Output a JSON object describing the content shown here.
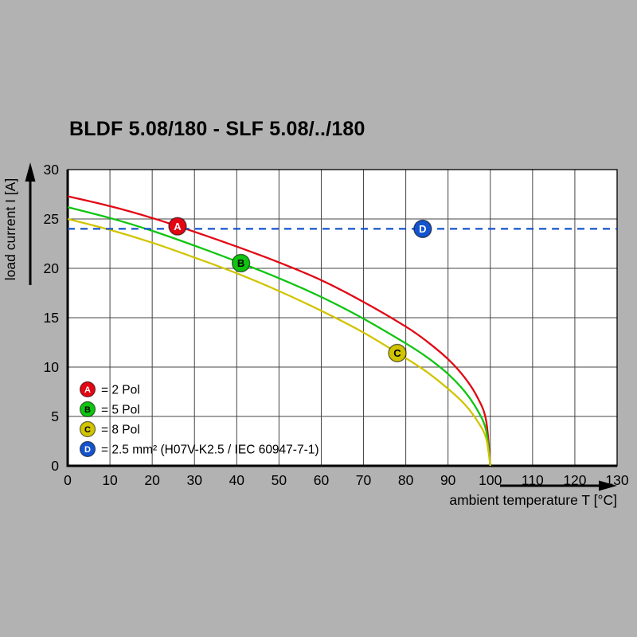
{
  "page": {
    "background": "#b2b2b2"
  },
  "chart_data": {
    "type": "line",
    "title": "BLDF 5.08/180 - SLF 5.08/../180",
    "xlabel": "ambient temperature T [°C]",
    "ylabel": "load current I [A]",
    "xlim": [
      0,
      130
    ],
    "ylim": [
      0,
      30
    ],
    "xticks": [
      0,
      10,
      20,
      30,
      40,
      50,
      60,
      70,
      80,
      90,
      100,
      110,
      120,
      130
    ],
    "yticks": [
      0,
      5,
      10,
      15,
      20,
      25,
      30
    ],
    "grid": true,
    "grid_color": "#444444",
    "plot_background": "#ffffff",
    "legend_position": "bottom-left",
    "series": [
      {
        "id": "A",
        "legend": "= 2 Pol",
        "color": "#e30613",
        "letter_color": "#ffffff",
        "line_style": "solid",
        "marker_x": 26,
        "points": [
          [
            0,
            27.3
          ],
          [
            10,
            26.3
          ],
          [
            20,
            25.1
          ],
          [
            30,
            23.7
          ],
          [
            40,
            22.2
          ],
          [
            50,
            20.6
          ],
          [
            60,
            18.8
          ],
          [
            70,
            16.6
          ],
          [
            80,
            14.1
          ],
          [
            85,
            12.6
          ],
          [
            90,
            10.8
          ],
          [
            94,
            8.9
          ],
          [
            97,
            6.9
          ],
          [
            99,
            4.6
          ],
          [
            100,
            0
          ]
        ]
      },
      {
        "id": "B",
        "legend": "= 5 Pol",
        "color": "#0fc40f",
        "letter_color": "#000000",
        "line_style": "solid",
        "marker_x": 41,
        "points": [
          [
            0,
            26.2
          ],
          [
            10,
            25.1
          ],
          [
            20,
            23.8
          ],
          [
            30,
            22.3
          ],
          [
            40,
            20.7
          ],
          [
            50,
            19.0
          ],
          [
            60,
            17.1
          ],
          [
            70,
            14.9
          ],
          [
            80,
            12.4
          ],
          [
            85,
            11.0
          ],
          [
            90,
            9.3
          ],
          [
            94,
            7.5
          ],
          [
            97,
            5.6
          ],
          [
            99,
            3.6
          ],
          [
            100,
            0
          ]
        ]
      },
      {
        "id": "C",
        "legend": "= 8 Pol",
        "color": "#d1c400",
        "letter_color": "#000000",
        "line_style": "solid",
        "marker_x": 78,
        "points": [
          [
            0,
            25.0
          ],
          [
            10,
            23.9
          ],
          [
            20,
            22.6
          ],
          [
            30,
            21.1
          ],
          [
            40,
            19.5
          ],
          [
            50,
            17.7
          ],
          [
            60,
            15.7
          ],
          [
            70,
            13.5
          ],
          [
            80,
            10.9
          ],
          [
            85,
            9.5
          ],
          [
            90,
            7.8
          ],
          [
            94,
            6.2
          ],
          [
            97,
            4.5
          ],
          [
            99,
            2.8
          ],
          [
            100,
            0
          ]
        ]
      },
      {
        "id": "D",
        "legend": "= 2.5 mm² (H07V-K2.5 / IEC 60947-7-1)",
        "color": "#1353ce",
        "letter_color": "#ffffff",
        "line_style": "dashed",
        "marker_x": 84,
        "points": [
          [
            0,
            24
          ],
          [
            130,
            24
          ]
        ]
      }
    ]
  }
}
